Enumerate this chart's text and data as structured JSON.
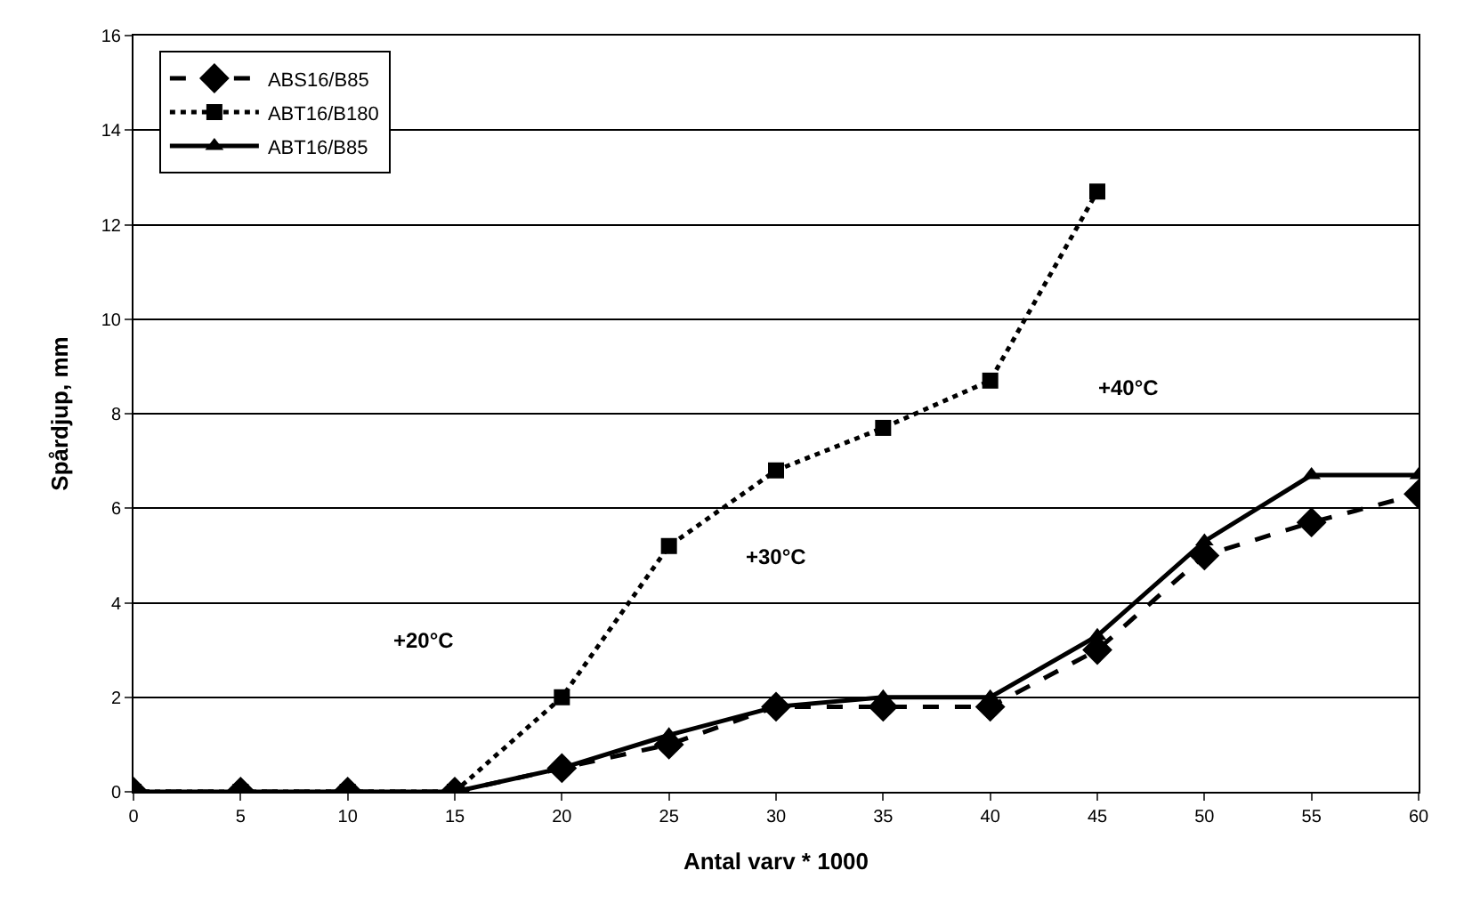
{
  "chart_data": {
    "type": "line",
    "xlabel": "Antal varv * 1000",
    "ylabel": "Spårdjup, mm",
    "x": [
      0,
      5,
      10,
      15,
      20,
      25,
      30,
      35,
      40,
      45,
      50,
      55,
      60
    ],
    "xlim": [
      0,
      60
    ],
    "xticks": [
      0,
      5,
      10,
      15,
      20,
      25,
      30,
      35,
      40,
      45,
      50,
      55,
      60
    ],
    "ylim": [
      0,
      16
    ],
    "yticks": [
      0,
      2,
      4,
      6,
      8,
      10,
      12,
      14,
      16
    ],
    "grid": "y",
    "legend": "top left",
    "series": [
      {
        "name": "ABS16/B85",
        "color": "#000000",
        "marker": "diamond",
        "line_style": "dashed",
        "values": [
          0,
          0,
          0,
          0,
          0.5,
          1.0,
          1.8,
          1.8,
          1.8,
          3.0,
          5.0,
          5.7,
          6.3
        ]
      },
      {
        "name": "ABT16/B180",
        "color": "#000000",
        "marker": "square",
        "line_style": "dotted",
        "values": [
          0,
          0,
          0,
          0,
          2.0,
          5.2,
          6.8,
          7.7,
          8.7,
          12.7,
          null,
          null,
          null
        ]
      },
      {
        "name": "ABT16/B85",
        "color": "#000000",
        "marker": "triangle",
        "line_style": "solid",
        "values": [
          0,
          0,
          0,
          0,
          0.5,
          1.2,
          1.8,
          2.0,
          2.0,
          3.3,
          5.3,
          6.7,
          6.7
        ]
      }
    ],
    "annotations": [
      "+20°C",
      "+30°C",
      "+40°C"
    ]
  }
}
